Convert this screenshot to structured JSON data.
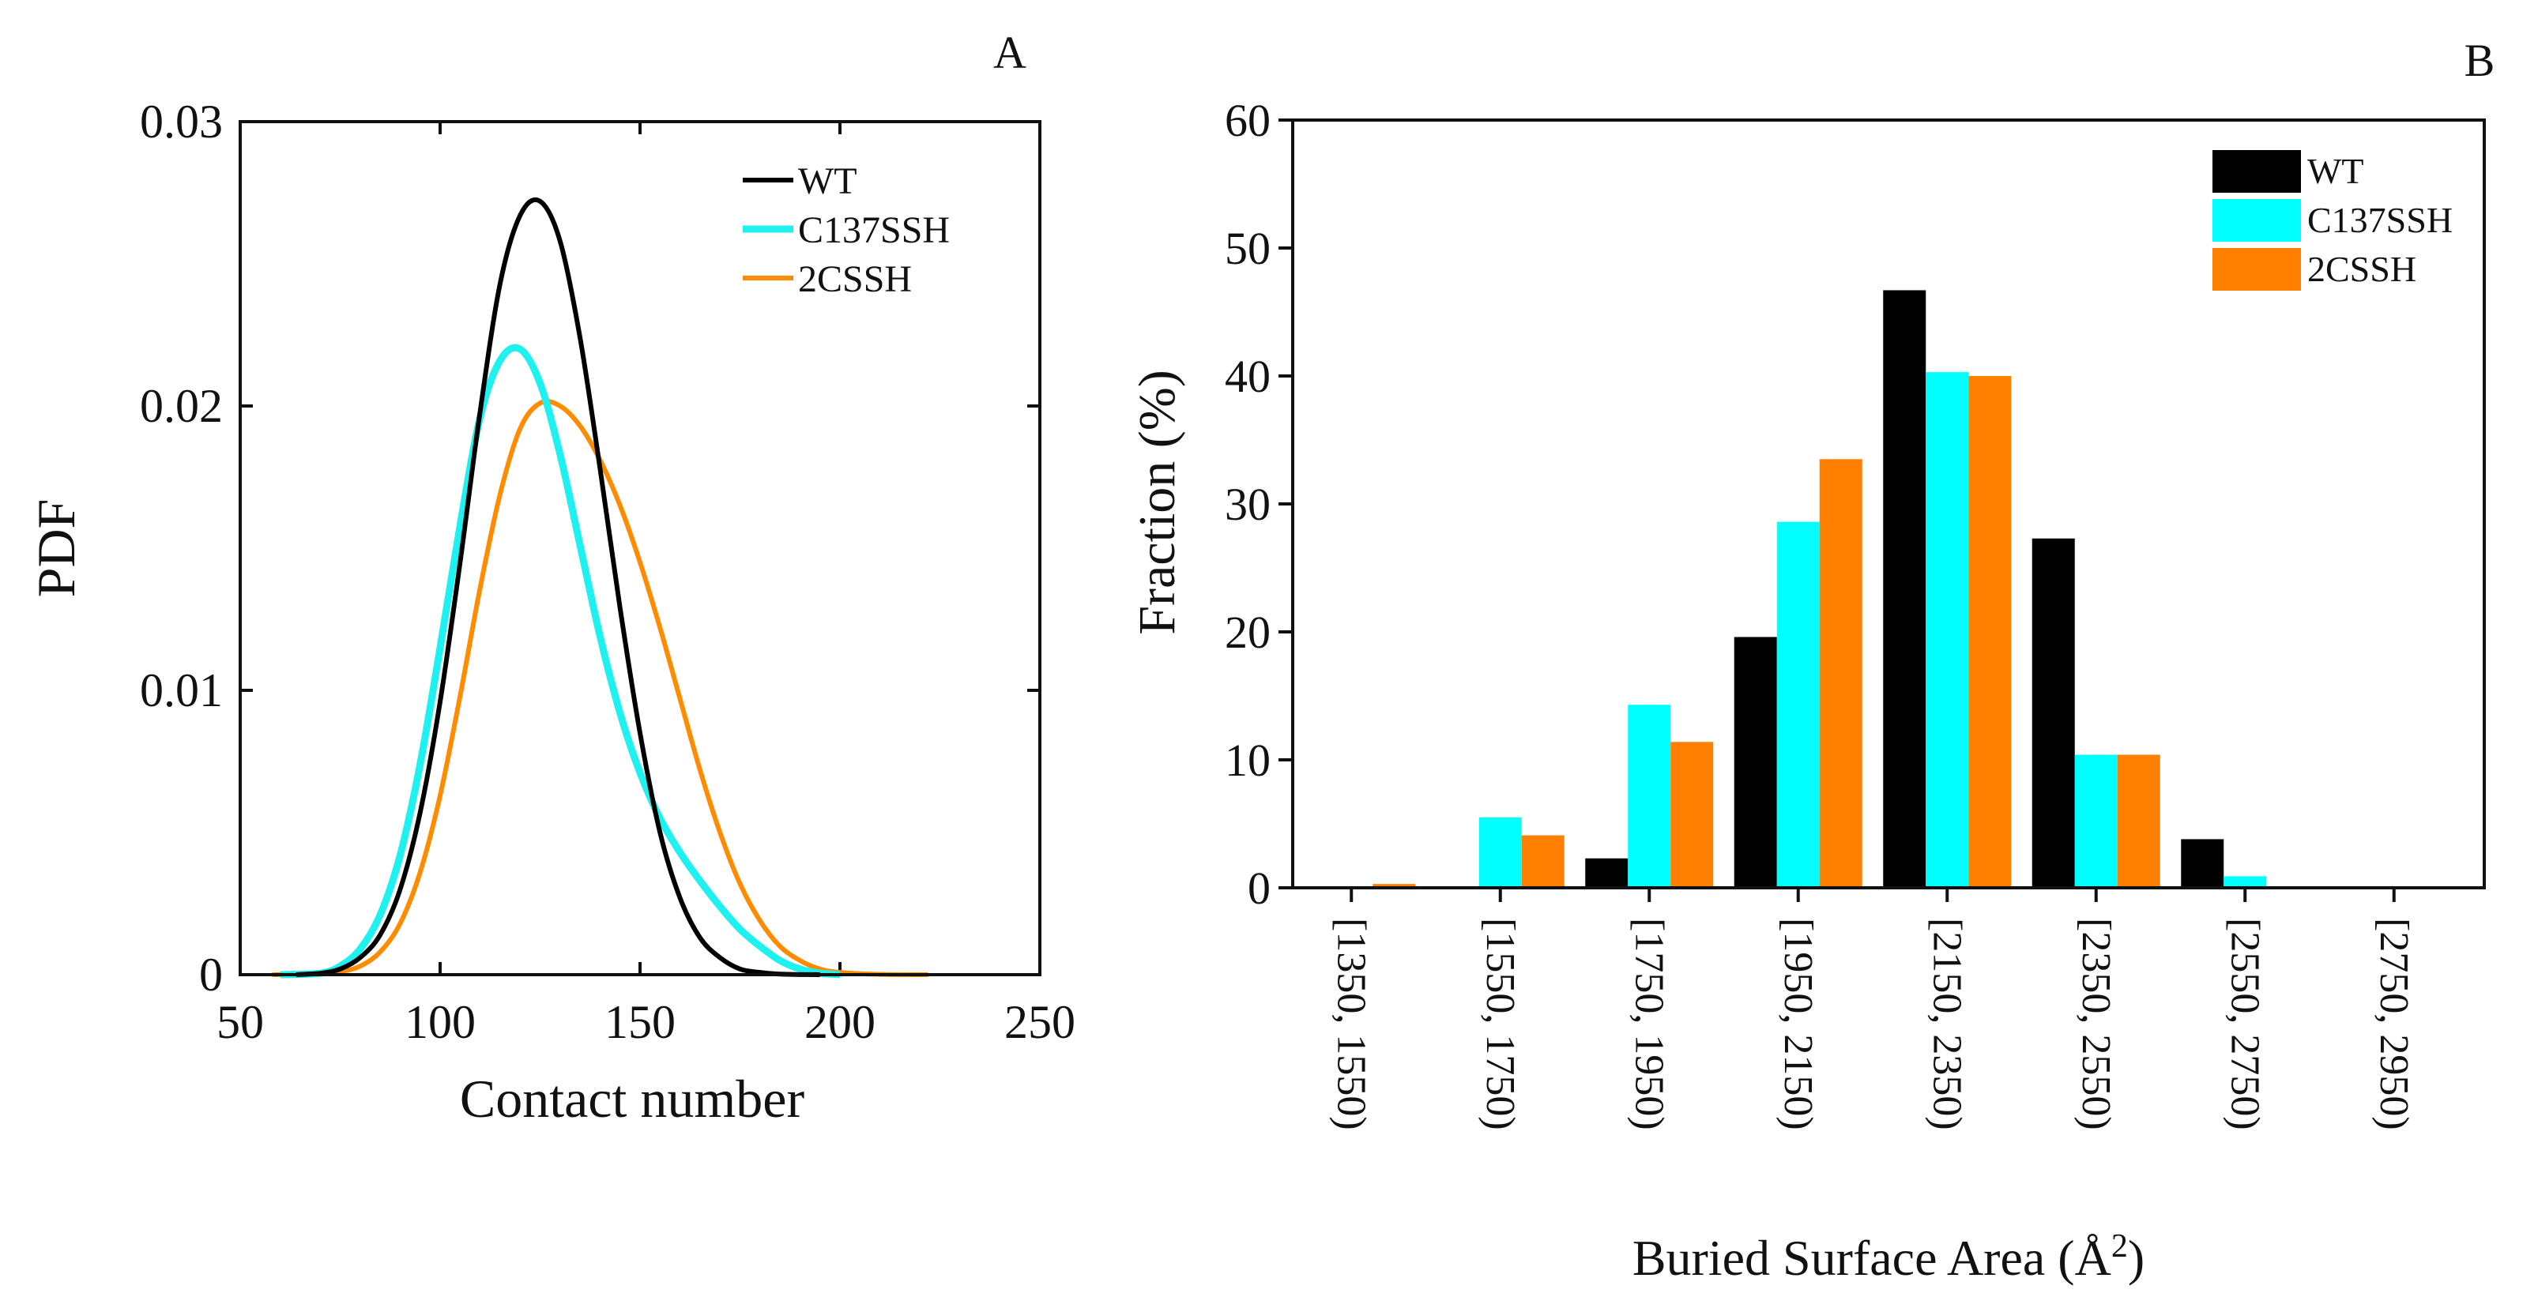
{
  "chart_data": [
    {
      "panel": "A",
      "type": "line",
      "panel_label": "A",
      "xlabel": "Contact number",
      "ylabel": "PDF",
      "xlim": [
        50,
        250
      ],
      "ylim": [
        0,
        0.03
      ],
      "xticks": [
        50,
        100,
        150,
        200,
        250
      ],
      "xtick_labels": [
        "50",
        "100",
        "150",
        "200",
        "250"
      ],
      "yticks": [
        0,
        0.01,
        0.02,
        0.03
      ],
      "ytick_labels": [
        "0",
        "0.01",
        "0.02",
        "0.03"
      ],
      "legend": "top-right",
      "series": [
        {
          "name": "WT",
          "color": "#000000",
          "x": [
            64,
            70,
            75,
            80,
            85,
            90,
            95,
            100,
            105,
            110,
            115,
            120,
            125,
            130,
            135,
            140,
            145,
            150,
            155,
            160,
            165,
            170,
            175,
            180,
            185,
            190,
            195
          ],
          "y": [
            0,
            5e-05,
            0.0002,
            0.0006,
            0.0014,
            0.003,
            0.0057,
            0.0096,
            0.0145,
            0.0198,
            0.0243,
            0.0267,
            0.0272,
            0.0258,
            0.0224,
            0.0178,
            0.0129,
            0.0085,
            0.005,
            0.0027,
            0.0013,
            0.0006,
            0.0002,
            8e-05,
            2e-05,
            5e-06,
            0
          ]
        },
        {
          "name": "C137SSH",
          "color": "#1ff0f0",
          "x": [
            60,
            70,
            75,
            80,
            85,
            90,
            95,
            100,
            105,
            110,
            115,
            120,
            125,
            130,
            135,
            140,
            145,
            150,
            155,
            160,
            165,
            170,
            175,
            180,
            185,
            190,
            195,
            200
          ],
          "y": [
            0,
            5e-05,
            0.0003,
            0.0009,
            0.0021,
            0.0042,
            0.0074,
            0.0115,
            0.0158,
            0.0196,
            0.0216,
            0.022,
            0.0208,
            0.0183,
            0.0151,
            0.0119,
            0.0092,
            0.0071,
            0.0055,
            0.0043,
            0.0033,
            0.0024,
            0.0016,
            0.001,
            0.0005,
            0.0002,
            5e-05,
            0
          ]
        },
        {
          "name": "2CSSH",
          "color": "#ff8c00",
          "x": [
            58,
            70,
            75,
            80,
            85,
            90,
            95,
            100,
            105,
            110,
            115,
            120,
            125,
            130,
            135,
            140,
            145,
            150,
            155,
            160,
            165,
            170,
            175,
            180,
            185,
            190,
            195,
            200,
            210,
            222
          ],
          "y": [
            0,
            3e-05,
            0.0001,
            0.0003,
            0.0008,
            0.0018,
            0.0036,
            0.0063,
            0.0098,
            0.0136,
            0.0169,
            0.0192,
            0.0201,
            0.02,
            0.0193,
            0.0181,
            0.0165,
            0.0145,
            0.0122,
            0.0097,
            0.0072,
            0.005,
            0.0032,
            0.0019,
            0.001,
            0.0005,
            0.0002,
            8e-05,
            1e-05,
            0
          ]
        }
      ]
    },
    {
      "panel": "B",
      "type": "bar",
      "panel_label": "B",
      "xlabel": "Buried Surface Area (Å",
      "xlabel_superscript": "2",
      "xlabel_suffix": ")",
      "ylabel": "Fraction (%)",
      "ylim": [
        0,
        60
      ],
      "yticks": [
        0,
        10,
        20,
        30,
        40,
        50,
        60
      ],
      "ytick_labels": [
        "0",
        "10",
        "20",
        "30",
        "40",
        "50",
        "60"
      ],
      "legend": "top-right",
      "categories": [
        "[1350, 1550)",
        "[1550, 1750)",
        "[1750, 1950)",
        "[1950, 2150)",
        "[2150, 2350)",
        "[2350, 2550)",
        "[2550, 2750)",
        "[2750, 2950)"
      ],
      "series": [
        {
          "name": "WT",
          "color": "#000000",
          "values": [
            0,
            0,
            2.3,
            19.6,
            46.7,
            27.3,
            3.8,
            0
          ]
        },
        {
          "name": "C137SSH",
          "color": "#00ffff",
          "values": [
            0,
            5.5,
            14.3,
            28.6,
            40.3,
            10.4,
            0.9,
            0
          ]
        },
        {
          "name": "2CSSH",
          "color": "#ff8000",
          "values": [
            0.3,
            4.1,
            11.4,
            33.5,
            40.0,
            10.4,
            0,
            0
          ]
        }
      ]
    }
  ]
}
